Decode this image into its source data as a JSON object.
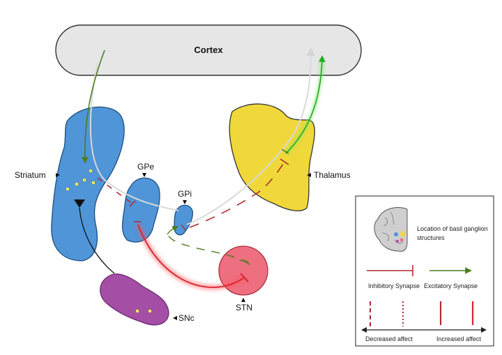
{
  "regions": {
    "cortex": "Cortex",
    "striatum": "Striatum",
    "gpe": "GPe",
    "gpi": "GPi",
    "thalamus": "Thalamus",
    "stn": "STN",
    "snc": "SNc"
  },
  "legend": {
    "location_caption": "Location of basil ganglion structures",
    "inhibitory": "Inhibitory Synapse",
    "excitatory": "Excitatory Synapse",
    "decreased": "Decreased affect",
    "increased": "Increased affect"
  },
  "colors": {
    "cortex": "#e6e6e6",
    "blue": "#4f95d8",
    "yellow": "#f0d83a",
    "pink": "#ee6f80",
    "purple": "#a44ea6",
    "inhibitory": "#b02a32",
    "excitatory": "#4a7d1e"
  }
}
